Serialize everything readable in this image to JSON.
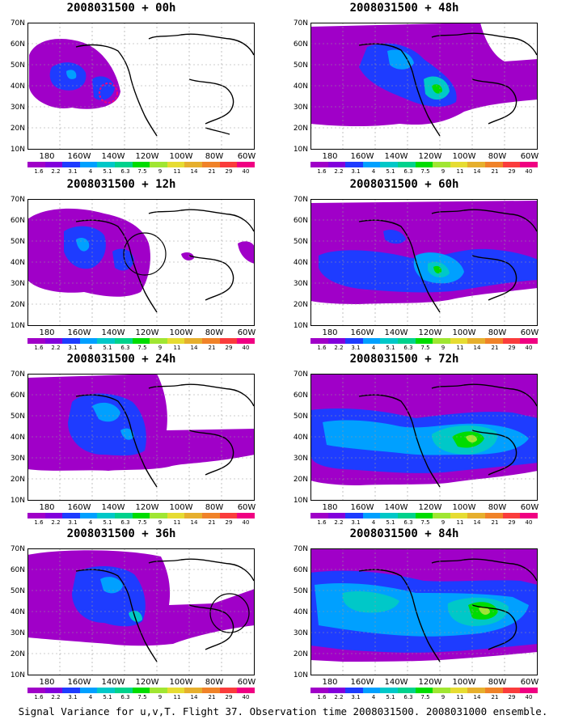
{
  "caption": "Signal Variance for u,v,T. Flight 37. Observation time 2008031500. 2008031000 ensemble.",
  "axes": {
    "y_ticks": [
      "70N",
      "60N",
      "50N",
      "40N",
      "30N",
      "20N",
      "10N"
    ],
    "x_ticks": [
      "180",
      "160W",
      "140W",
      "120W",
      "100W",
      "80W",
      "60W"
    ]
  },
  "colorbar": {
    "labels": [
      "1.6",
      "2.2",
      "3.1",
      "4",
      "5.1",
      "6.3",
      "7.5",
      "9",
      "11",
      "14",
      "21",
      "29",
      "40"
    ],
    "colors": [
      "#a000c8",
      "#8200dc",
      "#1e3cff",
      "#00a0ff",
      "#00c8c8",
      "#00d28c",
      "#00dc00",
      "#a0e632",
      "#e6dc32",
      "#e6af2d",
      "#f08228",
      "#fa3c3c",
      "#f00082"
    ]
  },
  "panels": [
    {
      "title": "2008031500 + 00h",
      "observation_circle": false
    },
    {
      "title": "2008031500 + 12h",
      "observation_circle": true
    },
    {
      "title": "2008031500 + 24h",
      "observation_circle": false
    },
    {
      "title": "2008031500 + 36h",
      "observation_circle": true
    },
    {
      "title": "2008031500 + 48h",
      "observation_circle": false
    },
    {
      "title": "2008031500 + 60h",
      "observation_circle": false
    },
    {
      "title": "2008031500 + 72h",
      "observation_circle": false
    },
    {
      "title": "2008031500 + 84h",
      "observation_circle": false
    }
  ]
}
